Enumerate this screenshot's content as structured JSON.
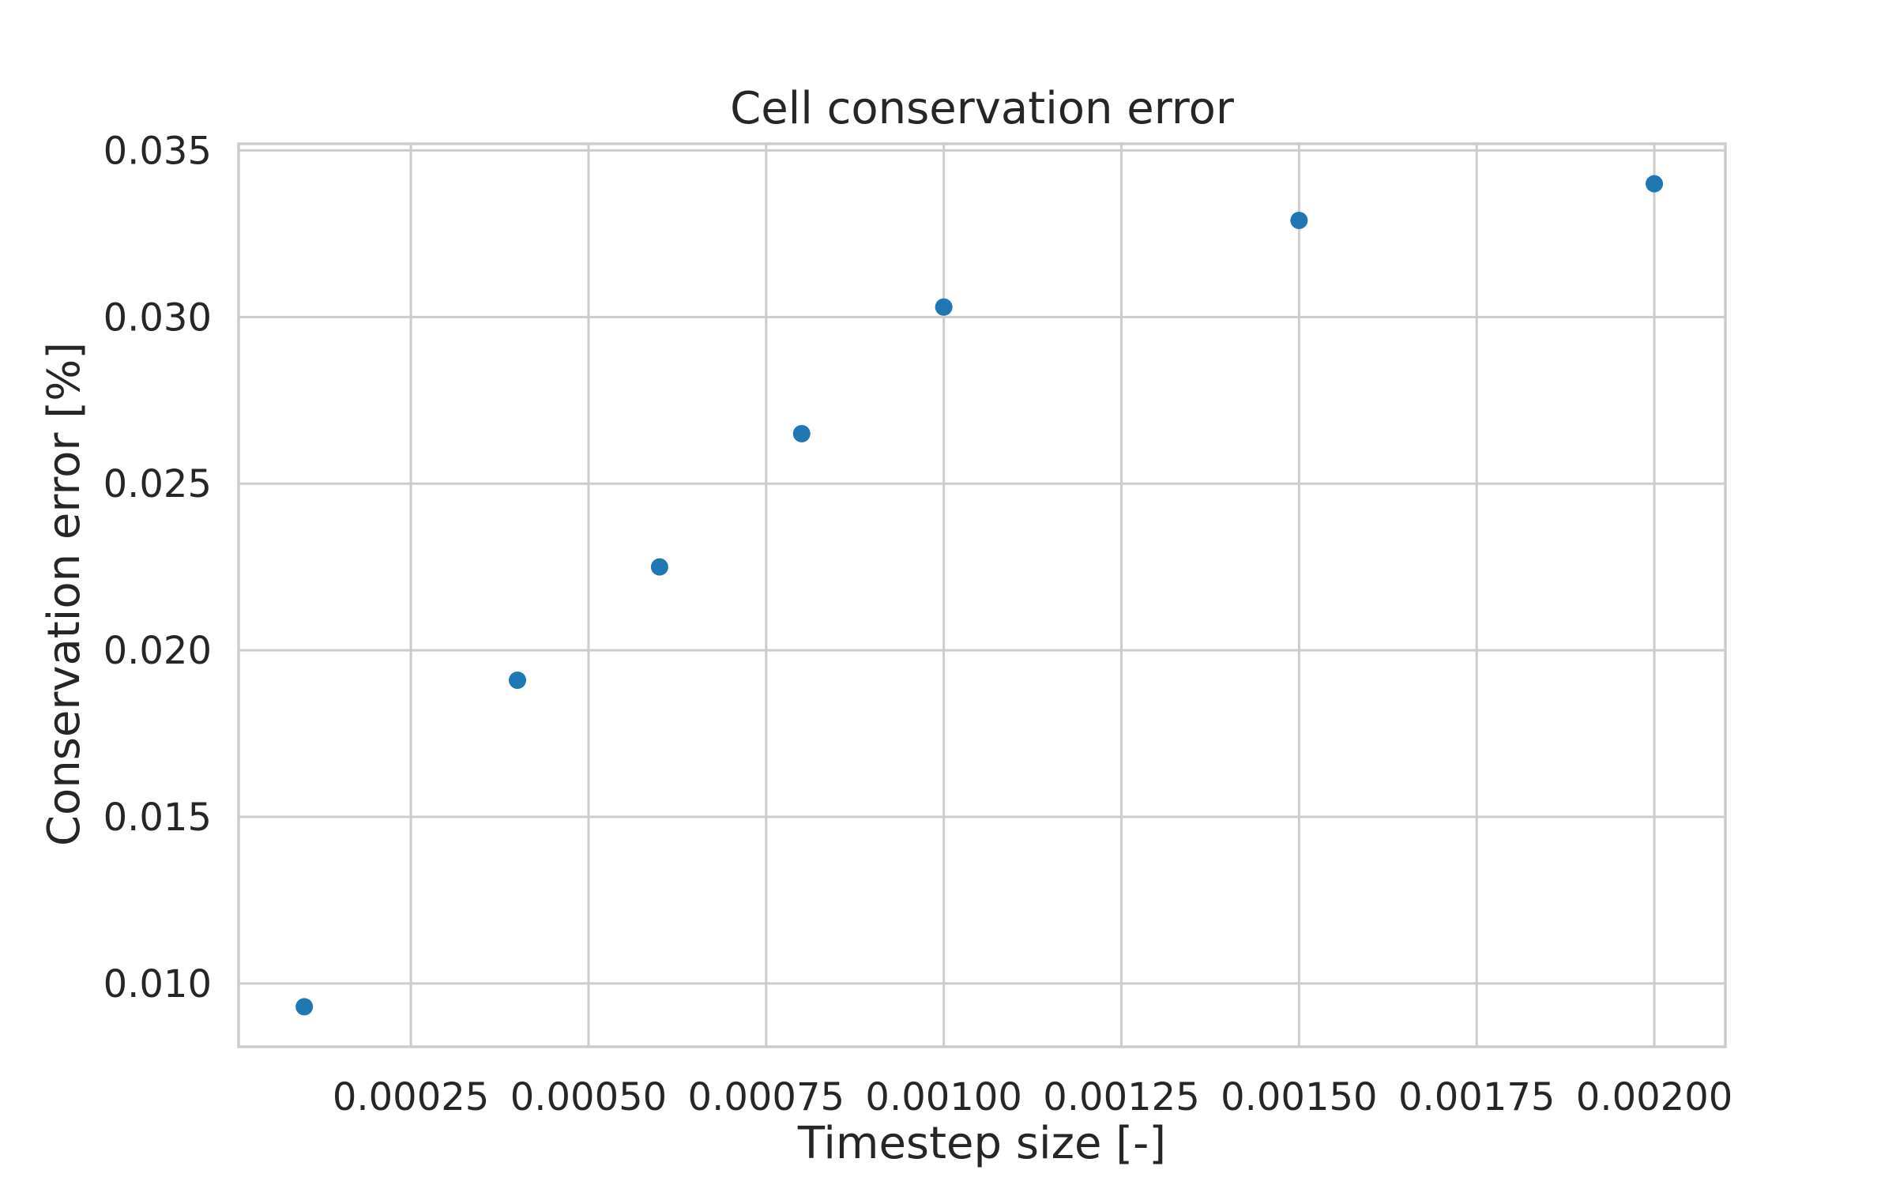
{
  "chart_data": {
    "type": "scatter",
    "title": "Cell conservation error",
    "xlabel": "Timestep size [-]",
    "ylabel": "Conservation error [%]",
    "xlim": [
      7.5e-06,
      0.0021
    ],
    "ylim": [
      0.0081,
      0.0352
    ],
    "xticks": [
      0.00025,
      0.0005,
      0.00075,
      0.001,
      0.00125,
      0.0015,
      0.00175,
      0.002
    ],
    "xtick_labels": [
      "0.00025",
      "0.00050",
      "0.00075",
      "0.00100",
      "0.00125",
      "0.00150",
      "0.00175",
      "0.00200"
    ],
    "yticks": [
      0.01,
      0.015,
      0.02,
      0.025,
      0.03,
      0.035
    ],
    "ytick_labels": [
      "0.010",
      "0.015",
      "0.020",
      "0.025",
      "0.030",
      "0.035"
    ],
    "grid": true,
    "series": [
      {
        "color": "#1f77b4",
        "points": [
          {
            "x": 0.0001,
            "y": 0.0093
          },
          {
            "x": 0.0004,
            "y": 0.0191
          },
          {
            "x": 0.0006,
            "y": 0.0225
          },
          {
            "x": 0.0008,
            "y": 0.0265
          },
          {
            "x": 0.001,
            "y": 0.0303
          },
          {
            "x": 0.0015,
            "y": 0.0329
          },
          {
            "x": 0.002,
            "y": 0.034
          }
        ]
      }
    ]
  }
}
